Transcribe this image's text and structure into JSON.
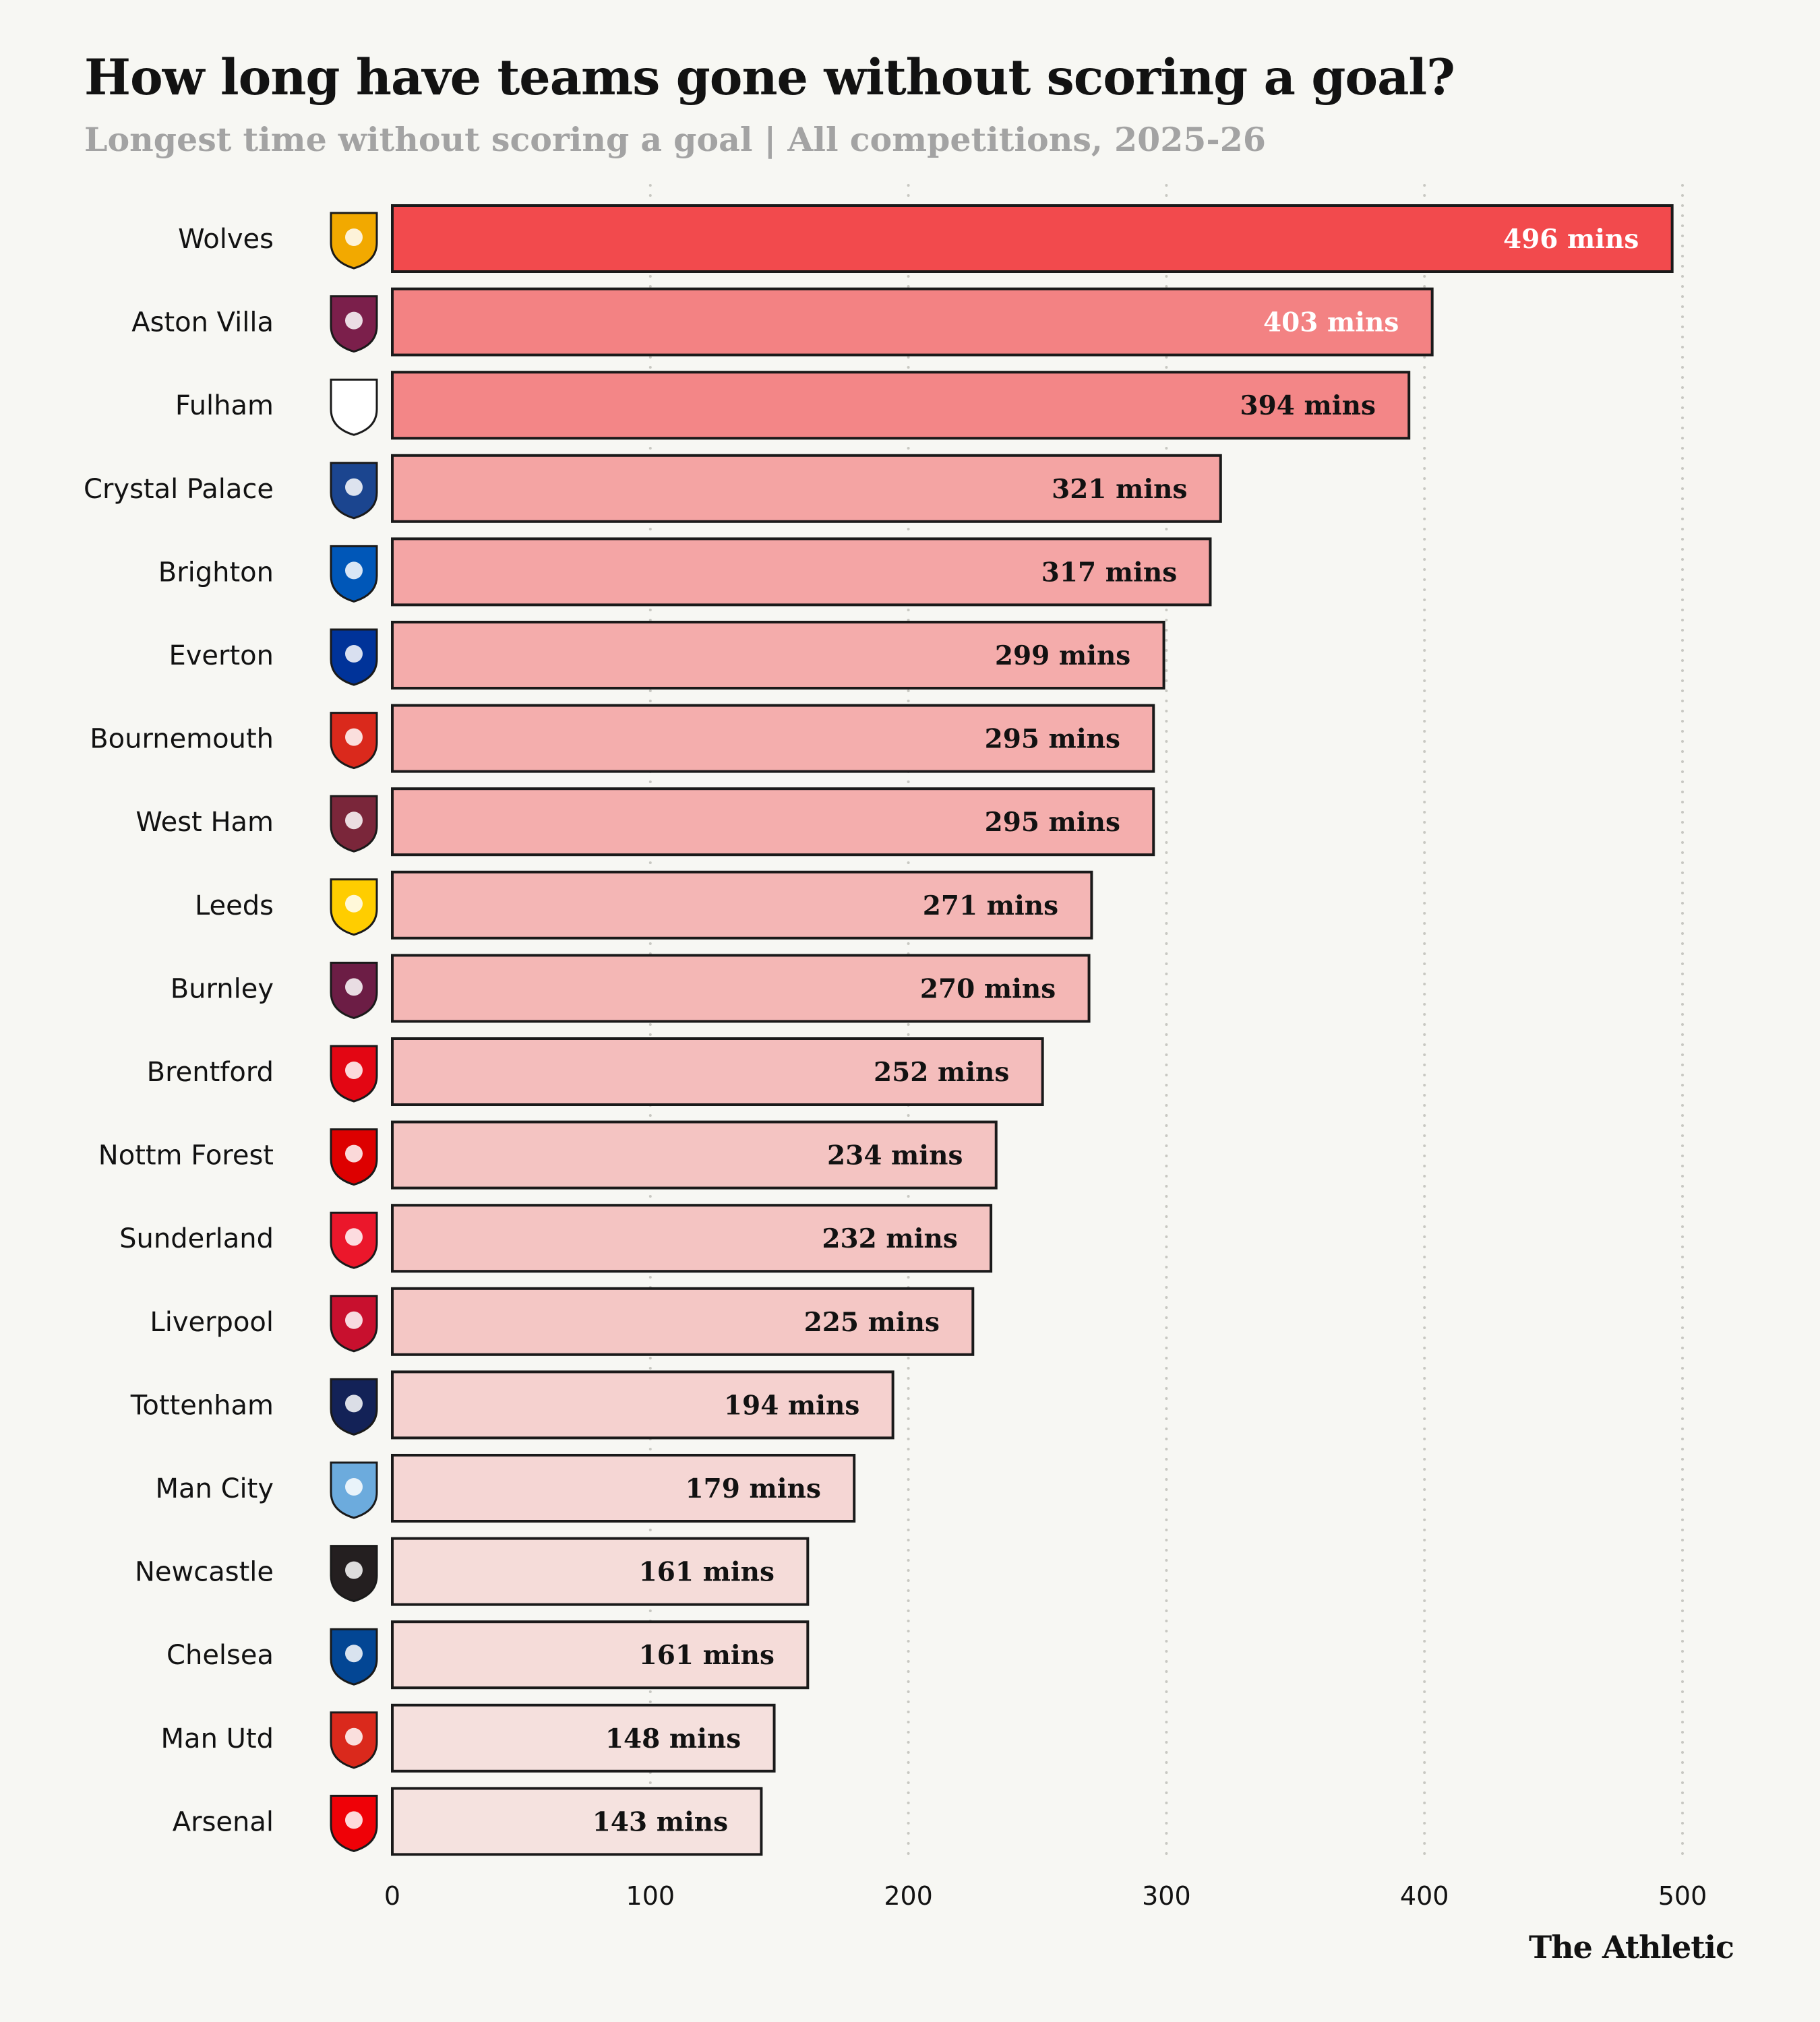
{
  "title": "How long have teams gone without scoring a goal?",
  "subtitle": "Longest time without scoring a goal | All competitions, 2025-26",
  "brand": "The Athletic",
  "colors": {
    "bar_max": "#f24a4d",
    "bar_min": "#f5e2df",
    "outline": "#1a1a1a",
    "grid": "#c8c8c2",
    "label_light": "#ffffff",
    "label_dark": "#121212"
  },
  "chart_data": {
    "type": "bar",
    "orientation": "horizontal",
    "title": "How long have teams gone without scoring a goal?",
    "subtitle": "Longest time without scoring a goal | All competitions, 2025-26",
    "xlim": [
      0,
      500
    ],
    "xticks": [
      0,
      100,
      200,
      300,
      400,
      500
    ],
    "grid": "vertical dotted",
    "value_suffix": " mins",
    "categories": [
      "Wolves",
      "Aston Villa",
      "Fulham",
      "Crystal Palace",
      "Brighton",
      "Everton",
      "Bournemouth",
      "West Ham",
      "Leeds",
      "Burnley",
      "Brentford",
      "Nottm Forest",
      "Sunderland",
      "Liverpool",
      "Tottenham",
      "Man City",
      "Newcastle",
      "Chelsea",
      "Man Utd",
      "Arsenal"
    ],
    "values": [
      496,
      403,
      394,
      321,
      317,
      299,
      295,
      295,
      271,
      270,
      252,
      234,
      232,
      225,
      194,
      179,
      161,
      161,
      148,
      143
    ],
    "icons": [
      "wolves-crest-icon",
      "aston-villa-crest-icon",
      "fulham-crest-icon",
      "crystal-palace-crest-icon",
      "brighton-crest-icon",
      "everton-crest-icon",
      "bournemouth-crest-icon",
      "west-ham-crest-icon",
      "leeds-crest-icon",
      "burnley-crest-icon",
      "brentford-crest-icon",
      "nottm-forest-crest-icon",
      "sunderland-crest-icon",
      "liverpool-crest-icon",
      "tottenham-crest-icon",
      "man-city-crest-icon",
      "newcastle-crest-icon",
      "chelsea-crest-icon",
      "man-utd-crest-icon",
      "arsenal-crest-icon"
    ],
    "icon_colors": [
      "#f2a900",
      "#7b1f4b",
      "#ffffff",
      "#1b458f",
      "#0057b8",
      "#003399",
      "#da291c",
      "#7a263a",
      "#ffcd00",
      "#6c1d45",
      "#e30613",
      "#dd0000",
      "#eb172b",
      "#c8102e",
      "#132257",
      "#6cabdd",
      "#241f20",
      "#034694",
      "#da291c",
      "#ef0107"
    ]
  }
}
